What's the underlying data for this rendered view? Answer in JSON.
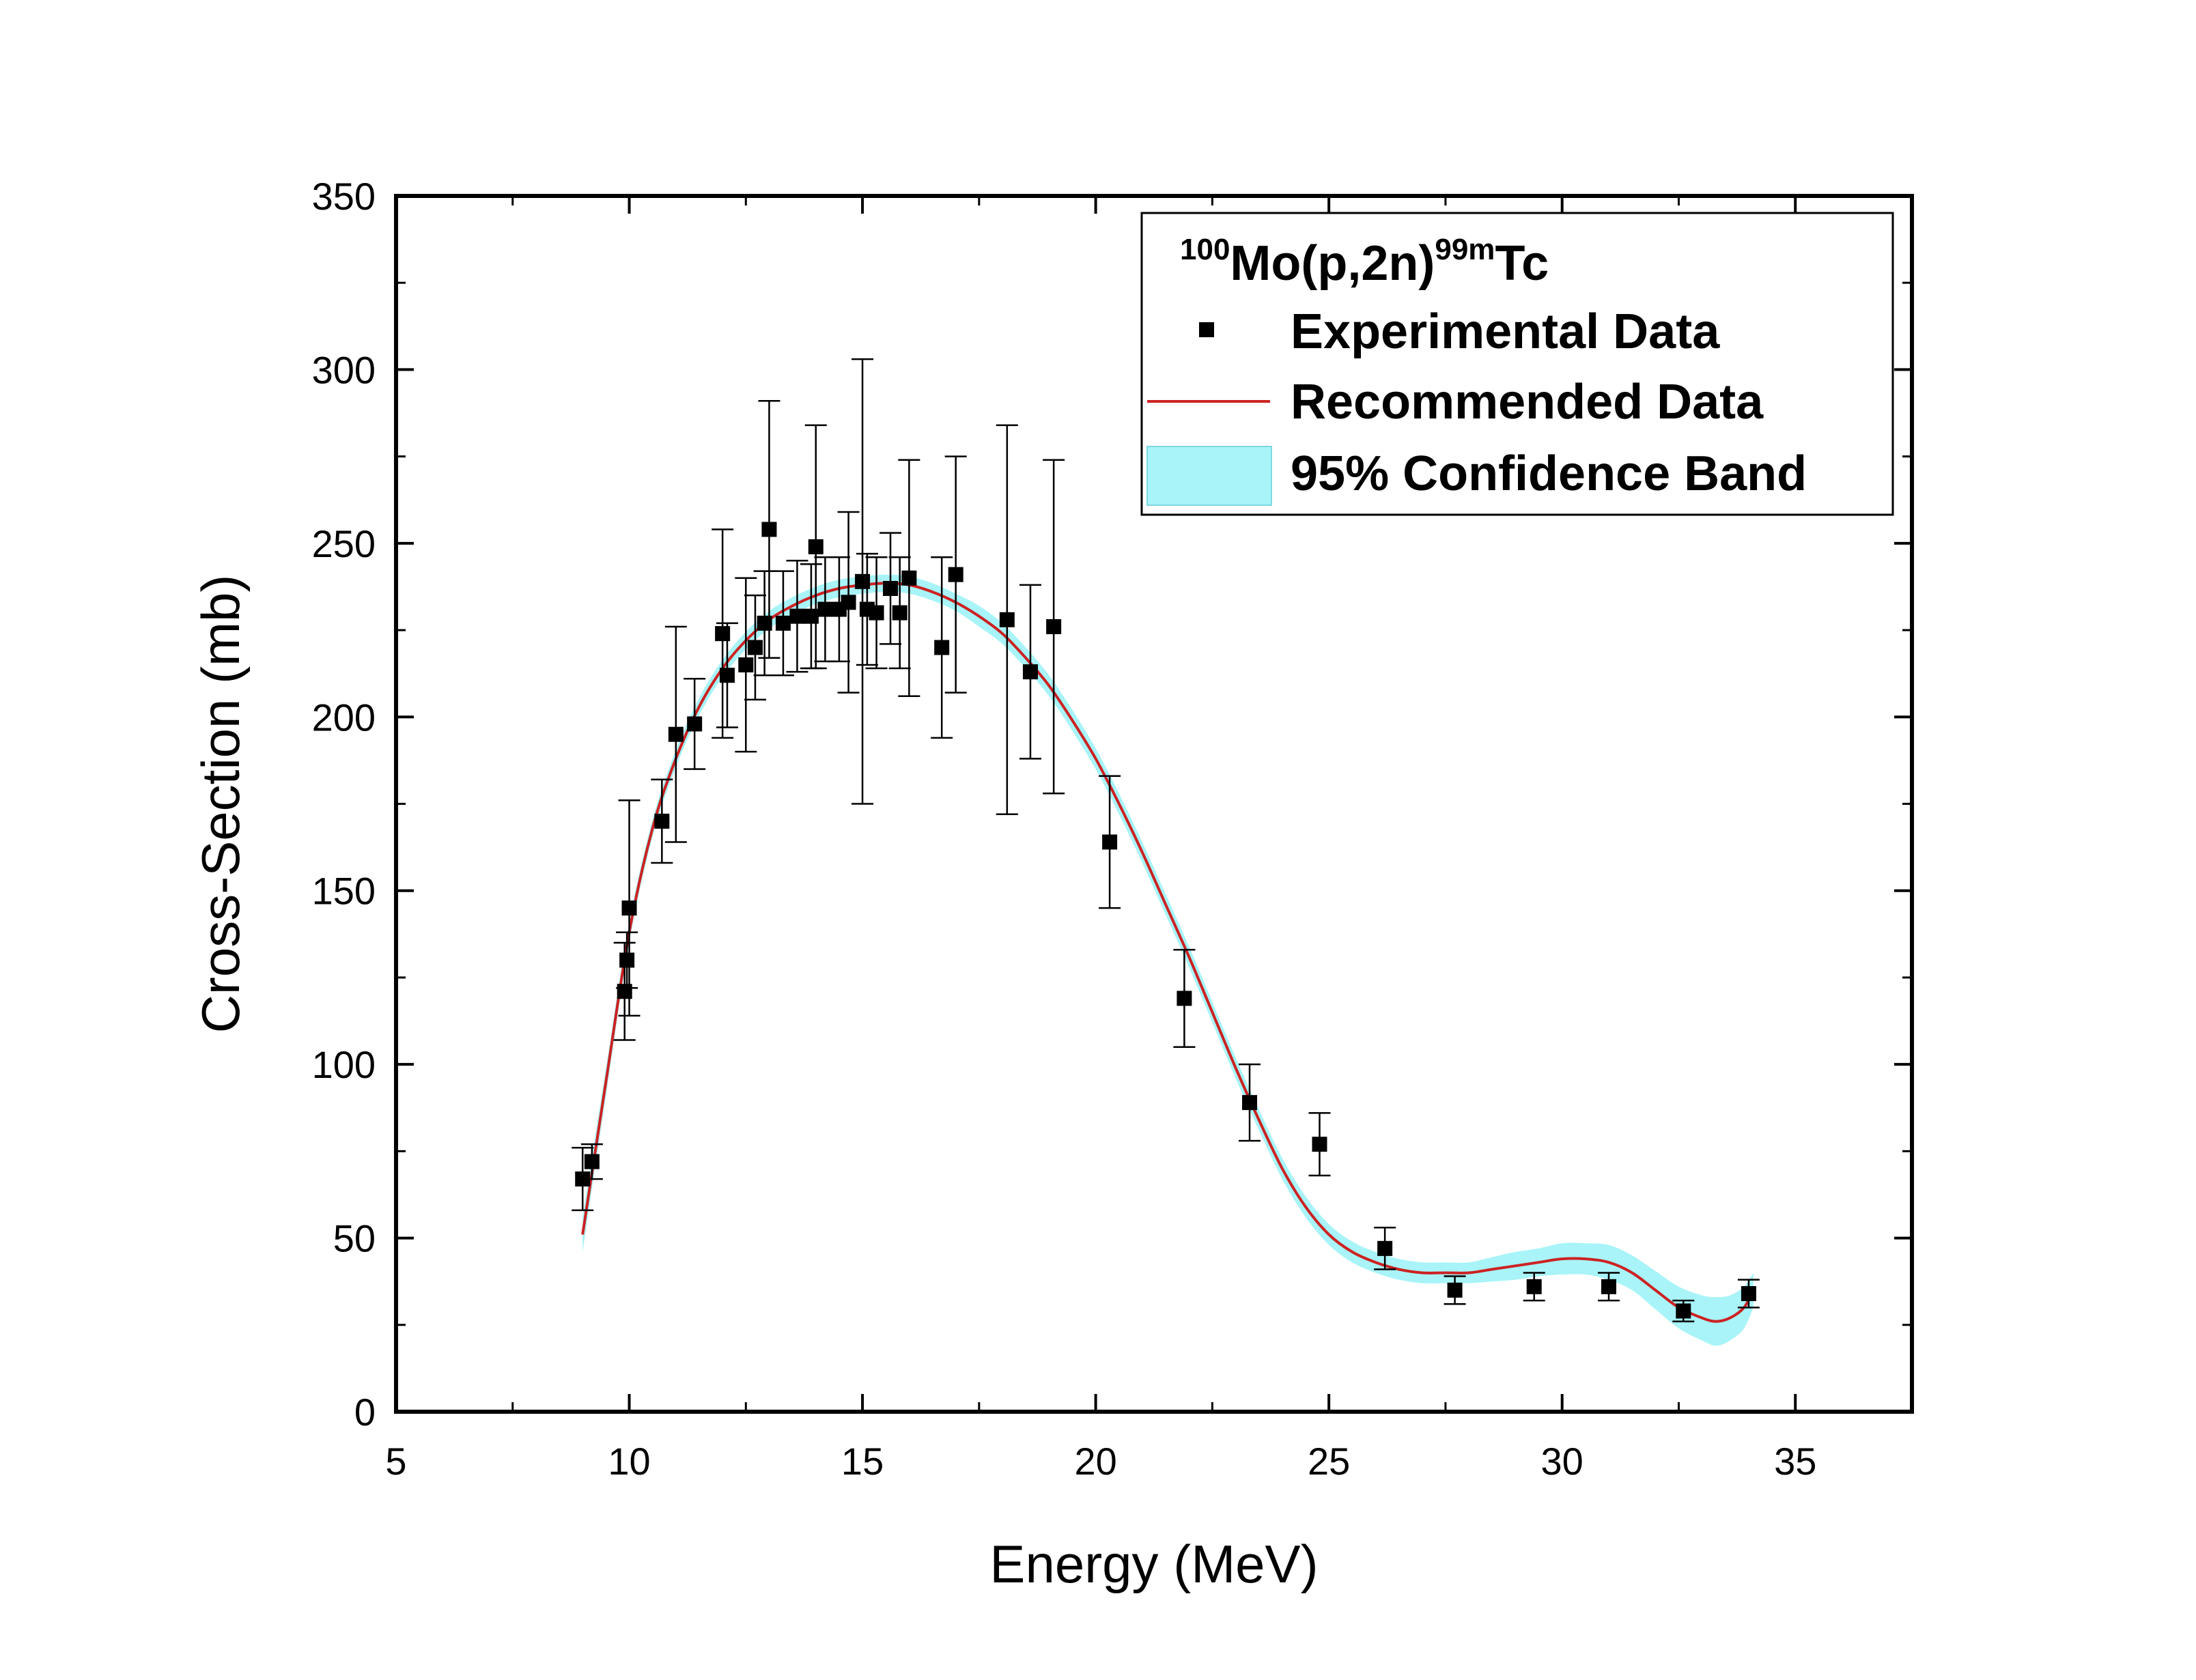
{
  "chart_data": {
    "type": "scatter",
    "title": "",
    "xlabel": "Energy (MeV)",
    "ylabel": "Cross-Section (mb)",
    "xlim": [
      5,
      37.5
    ],
    "ylim": [
      0,
      350
    ],
    "x_ticks": [
      5,
      10,
      15,
      20,
      25,
      30,
      35
    ],
    "y_ticks": [
      0,
      50,
      100,
      150,
      200,
      250,
      300,
      350
    ],
    "x_tick_labels": [
      "5",
      "10",
      "15",
      "20",
      "25",
      "30",
      "35"
    ],
    "y_tick_labels": [
      "0",
      "50",
      "100",
      "150",
      "200",
      "250",
      "300",
      "350"
    ],
    "grid": false,
    "legend": {
      "position": "top-right",
      "reaction": {
        "target": "Mo",
        "target_mass": "100",
        "channel": "(p,2n)",
        "product_mass": "99m",
        "product": "Tc"
      },
      "entries": [
        "Experimental Data",
        "Recommended Data",
        "95% Confidence Band"
      ]
    },
    "colors": {
      "experimental": "#000000",
      "recommended": "#cc2222",
      "band": "#a8f4f8",
      "band_edge": "#7fd8e0",
      "axis": "#000000"
    },
    "series": [
      {
        "name": "Experimental Data",
        "kind": "points_with_error",
        "x": [
          9.0,
          9.2,
          9.9,
          9.95,
          10.0,
          10.7,
          11.0,
          11.4,
          12.0,
          12.1,
          12.5,
          12.7,
          12.9,
          13.0,
          13.3,
          13.6,
          13.9,
          14.0,
          14.2,
          14.5,
          14.7,
          15.0,
          15.1,
          15.3,
          15.6,
          15.8,
          16.0,
          16.7,
          17.0,
          18.1,
          18.6,
          19.1,
          20.3,
          21.9,
          23.3,
          24.8,
          26.2,
          27.7,
          29.4,
          31.0,
          32.6,
          34.0
        ],
        "y": [
          67,
          72,
          121,
          130,
          145,
          170,
          195,
          198,
          224,
          212,
          215,
          220,
          227,
          254,
          227,
          229,
          229,
          249,
          231,
          231,
          233,
          239,
          231,
          230,
          237,
          230,
          240,
          220,
          241,
          228,
          213,
          226,
          164,
          119,
          89,
          77,
          47,
          35,
          36,
          36,
          29,
          34
        ],
        "err": [
          9,
          5,
          14,
          8,
          31,
          12,
          31,
          13,
          30,
          15,
          25,
          15,
          15,
          37,
          15,
          16,
          15,
          35,
          15,
          15,
          26,
          64,
          16,
          16,
          16,
          16,
          34,
          26,
          34,
          56,
          25,
          48,
          19,
          14,
          11,
          9,
          6,
          4,
          4,
          4,
          3,
          4
        ]
      },
      {
        "name": "Recommended Data",
        "kind": "line",
        "x": [
          9.0,
          9.5,
          10.0,
          10.5,
          11.0,
          11.5,
          12.0,
          12.5,
          13.0,
          13.5,
          14.0,
          14.5,
          15.0,
          15.5,
          16.0,
          16.5,
          17.0,
          17.5,
          18.0,
          18.5,
          19.0,
          19.5,
          20.0,
          20.5,
          21.0,
          21.5,
          22.0,
          22.5,
          23.0,
          23.5,
          24.0,
          24.5,
          25.0,
          25.5,
          26.0,
          26.5,
          27.0,
          27.5,
          28.0,
          28.5,
          29.0,
          29.5,
          30.0,
          30.5,
          31.0,
          31.5,
          32.0,
          32.5,
          33.0,
          33.3,
          33.6,
          33.9,
          34.1
        ],
        "y": [
          51,
          95,
          138,
          168,
          188,
          203,
          214,
          222,
          228,
          232,
          235,
          237,
          238,
          238.5,
          238,
          236,
          233,
          229,
          224,
          217,
          209,
          199,
          188,
          175,
          161,
          146,
          131,
          115,
          99,
          84,
          70,
          59,
          51,
          46,
          43,
          41,
          40,
          40,
          40,
          41,
          42,
          43,
          44,
          44,
          43,
          40,
          35,
          30,
          27,
          26,
          27,
          30,
          35
        ]
      },
      {
        "name": "95% Confidence Band",
        "kind": "band",
        "x": [
          9.0,
          9.5,
          10.0,
          10.5,
          11.0,
          11.5,
          12.0,
          12.5,
          13.0,
          13.5,
          14.0,
          14.5,
          15.0,
          15.5,
          16.0,
          16.5,
          17.0,
          17.5,
          18.0,
          18.5,
          19.0,
          19.5,
          20.0,
          20.5,
          21.0,
          21.5,
          22.0,
          22.5,
          23.0,
          23.5,
          24.0,
          24.5,
          25.0,
          25.5,
          26.0,
          26.5,
          27.0,
          27.5,
          28.0,
          28.5,
          29.0,
          29.5,
          30.0,
          30.5,
          31.0,
          31.5,
          32.0,
          32.5,
          33.0,
          33.3,
          33.6,
          33.9,
          34.1
        ],
        "half_width": [
          5,
          4,
          3,
          2.5,
          2.5,
          2.5,
          2.5,
          2.5,
          2.5,
          2.5,
          2.5,
          2.5,
          2.5,
          2.5,
          2.5,
          2.5,
          2.5,
          3,
          3,
          3,
          3,
          3,
          3,
          3,
          3,
          3,
          3,
          3,
          3,
          3,
          3,
          3,
          3,
          3,
          3,
          3,
          3,
          3,
          3,
          3.5,
          4,
          4,
          4.5,
          4.5,
          5,
          5,
          5.5,
          6,
          6.5,
          7,
          6.5,
          6,
          5
        ]
      }
    ]
  }
}
